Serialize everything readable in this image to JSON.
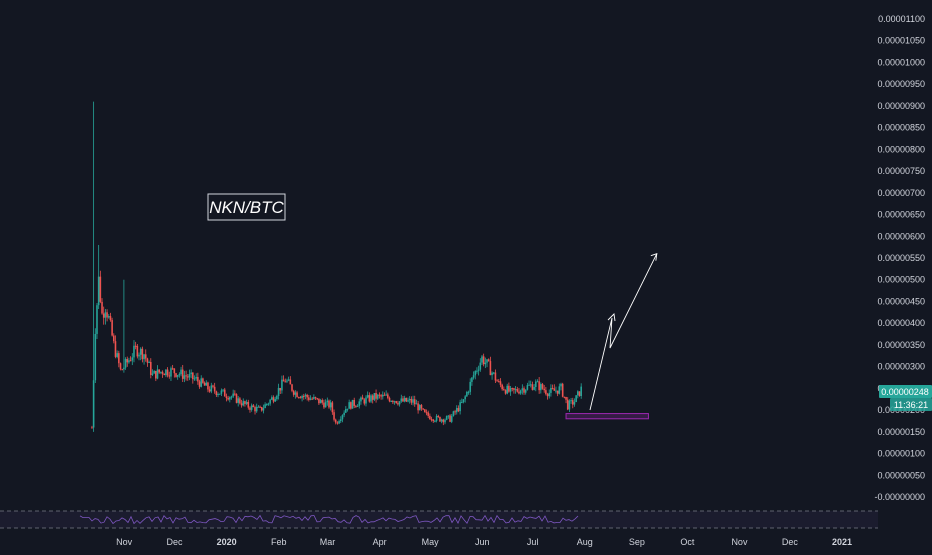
{
  "chart_data": {
    "type": "candlestick",
    "title": "NKN/BTC",
    "price_axis": {
      "ticks": [
        "0.00001100",
        "0.00001050",
        "0.00001000",
        "0.00000950",
        "0.00000900",
        "0.00000850",
        "0.00000800",
        "0.00000750",
        "0.00000700",
        "0.00000650",
        "0.00000600",
        "0.00000550",
        "0.00000500",
        "0.00000450",
        "0.00000400",
        "0.00000350",
        "0.00000300",
        "0.00000250",
        "0.00000200",
        "0.00000150",
        "0.00000100",
        "0.00000050",
        "-0.00000000"
      ],
      "range": [
        0.0,
        1.1e-05
      ]
    },
    "time_axis": {
      "ticks": [
        "Nov",
        "Dec",
        "2020",
        "Feb",
        "Mar",
        "Apr",
        "May",
        "Jun",
        "Jul",
        "Aug",
        "Sep",
        "Oct",
        "Nov",
        "Dec",
        "2021"
      ]
    },
    "last_price_label": "0.00000248",
    "countdown_label": "11:36:21",
    "colors": {
      "background": "#131722",
      "up": "#26a69a",
      "down": "#ef5350",
      "axis_text": "#d1d4dc",
      "last_price": "#26a69a",
      "support_box": "#9c27b0",
      "rsi_line": "#7e57c2",
      "annotation_arrow": "#ffffff"
    },
    "series_close": [
      {
        "date": "2019-10-20",
        "close": 1.6e-06
      },
      {
        "date": "2019-10-22",
        "close": 3.9e-06
      },
      {
        "date": "2019-10-24",
        "close": 5e-06
      },
      {
        "date": "2019-10-26",
        "close": 4.2e-06
      },
      {
        "date": "2019-10-28",
        "close": 4.4e-06
      },
      {
        "date": "2019-10-30",
        "close": 4.1e-06
      },
      {
        "date": "2019-11-02",
        "close": 3.5e-06
      },
      {
        "date": "2019-11-06",
        "close": 2.9e-06
      },
      {
        "date": "2019-11-10",
        "close": 3.1e-06
      },
      {
        "date": "2019-11-15",
        "close": 3.4e-06
      },
      {
        "date": "2019-11-20",
        "close": 3.3e-06
      },
      {
        "date": "2019-11-25",
        "close": 2.8e-06
      },
      {
        "date": "2019-12-01",
        "close": 2.9e-06
      },
      {
        "date": "2019-12-07",
        "close": 2.9e-06
      },
      {
        "date": "2019-12-14",
        "close": 2.8e-06
      },
      {
        "date": "2019-12-21",
        "close": 2.7e-06
      },
      {
        "date": "2019-12-28",
        "close": 2.5e-06
      },
      {
        "date": "2020-01-05",
        "close": 2.4e-06
      },
      {
        "date": "2020-01-12",
        "close": 2.3e-06
      },
      {
        "date": "2020-01-20",
        "close": 2.1e-06
      },
      {
        "date": "2020-01-28",
        "close": 2e-06
      },
      {
        "date": "2020-02-05",
        "close": 2.3e-06
      },
      {
        "date": "2020-02-12",
        "close": 2.7e-06
      },
      {
        "date": "2020-02-18",
        "close": 2.4e-06
      },
      {
        "date": "2020-02-25",
        "close": 2.3e-06
      },
      {
        "date": "2020-03-03",
        "close": 2.2e-06
      },
      {
        "date": "2020-03-10",
        "close": 2.1e-06
      },
      {
        "date": "2020-03-13",
        "close": 1.7e-06
      },
      {
        "date": "2020-03-20",
        "close": 2.1e-06
      },
      {
        "date": "2020-03-28",
        "close": 2.2e-06
      },
      {
        "date": "2020-04-05",
        "close": 2.3e-06
      },
      {
        "date": "2020-04-12",
        "close": 2.3e-06
      },
      {
        "date": "2020-04-20",
        "close": 2.2e-06
      },
      {
        "date": "2020-04-28",
        "close": 2.2e-06
      },
      {
        "date": "2020-05-05",
        "close": 1.9e-06
      },
      {
        "date": "2020-05-12",
        "close": 1.8e-06
      },
      {
        "date": "2020-05-20",
        "close": 1.8e-06
      },
      {
        "date": "2020-05-28",
        "close": 2.2e-06
      },
      {
        "date": "2020-06-03",
        "close": 2.8e-06
      },
      {
        "date": "2020-06-08",
        "close": 3.2e-06
      },
      {
        "date": "2020-06-12",
        "close": 3e-06
      },
      {
        "date": "2020-06-18",
        "close": 2.6e-06
      },
      {
        "date": "2020-06-25",
        "close": 2.4e-06
      },
      {
        "date": "2020-07-02",
        "close": 2.5e-06
      },
      {
        "date": "2020-07-10",
        "close": 2.6e-06
      },
      {
        "date": "2020-07-18",
        "close": 2.4e-06
      },
      {
        "date": "2020-07-25",
        "close": 2.5e-06
      },
      {
        "date": "2020-07-29",
        "close": 2.1e-06
      },
      {
        "date": "2020-08-02",
        "close": 2.2e-06
      },
      {
        "date": "2020-08-06",
        "close": 2.48e-06
      }
    ],
    "annotations": {
      "support_zone": {
        "from": "2020-07-28",
        "to": "2020-09-15",
        "low": 1.8e-06,
        "high": 1.92e-06
      },
      "arrow_target": {
        "date": "2020-09-20",
        "price": 5.6e-06
      }
    },
    "rsi_panel": {
      "visible": true,
      "upper_band": 70,
      "lower_band": 30
    }
  }
}
